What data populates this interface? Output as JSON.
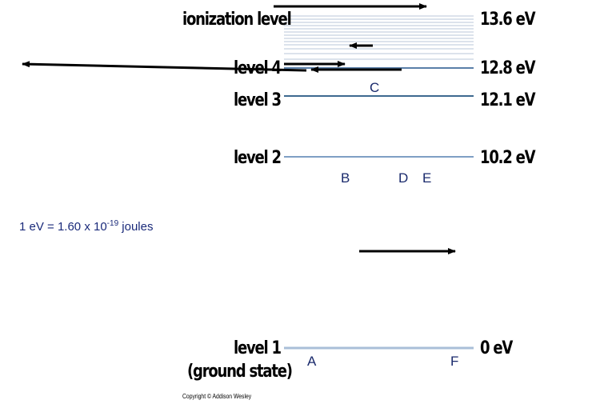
{
  "levels": {
    "ionization": {
      "label": "ionization level",
      "energy": "13.6 eV"
    },
    "level4": {
      "label": "level 4",
      "energy": "12.8 eV"
    },
    "level3": {
      "label": "level 3",
      "energy": "12.1 eV"
    },
    "level2": {
      "label": "level 2",
      "energy": "10.2 eV"
    },
    "level1": {
      "label": "level 1",
      "sublabel": "(ground state)",
      "energy": "0 eV"
    }
  },
  "markers": {
    "a": "A",
    "b": "B",
    "c": "C",
    "d": "D",
    "e": "E",
    "f": "F"
  },
  "conversion": {
    "prefix": "1 eV = 1.60 x 10",
    "exponent": "-19",
    "suffix": " joules"
  },
  "copyright": "Copyright © Addison Wesley",
  "colors": {
    "level_line": "#5a7fa8",
    "ionization_lines": "#b8c7d9",
    "arrow": "#000000",
    "letter": "#1a2a6c"
  }
}
